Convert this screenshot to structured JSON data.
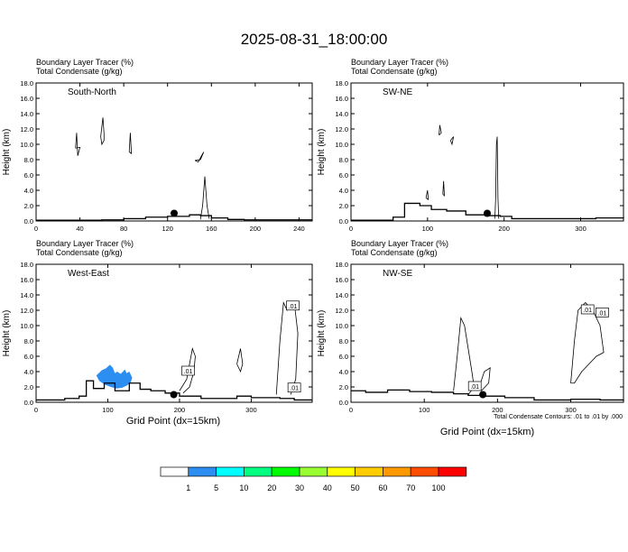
{
  "title": "2025-08-31_18:00:00",
  "chart_data": [
    {
      "type": "contour",
      "label_top": "Boundary Layer Tracer   (%)",
      "label_bottom": "Total Condensate   (g/kg)",
      "panel_label": "South-North",
      "ylabel": "Height (km)",
      "xlim": [
        0,
        252
      ],
      "ylim": [
        0,
        18
      ],
      "x_ticks": [
        0,
        40,
        80,
        120,
        160,
        200,
        240
      ],
      "y_ticks": [
        "0.0",
        "2.0",
        "4.0",
        "6.0",
        "8.0",
        "10.0",
        "12.0",
        "14.0",
        "16.0",
        "18.0"
      ],
      "marker": {
        "x": 126,
        "y": 1.0
      },
      "terrain": [
        [
          0,
          0.1
        ],
        [
          30,
          0.1
        ],
        [
          60,
          0.15
        ],
        [
          80,
          0.3
        ],
        [
          100,
          0.5
        ],
        [
          120,
          0.6
        ],
        [
          140,
          0.8
        ],
        [
          150,
          0.7
        ],
        [
          160,
          0.4
        ],
        [
          175,
          0.2
        ],
        [
          190,
          0.15
        ],
        [
          252,
          0.15
        ]
      ],
      "contours": [
        [
          [
            36,
            9.5
          ],
          [
            37,
            11.5
          ],
          [
            38,
            8.5
          ],
          [
            40,
            9.6
          ],
          [
            36,
            9.5
          ]
        ],
        [
          [
            60,
            12.3
          ],
          [
            61,
            13.5
          ],
          [
            62,
            11.4
          ],
          [
            62,
            10.5
          ],
          [
            60,
            10.0
          ],
          [
            59,
            11.0
          ],
          [
            60,
            12.3
          ]
        ],
        [
          [
            85,
            9.0
          ],
          [
            86,
            11.5
          ],
          [
            87,
            8.8
          ],
          [
            85,
            9.0
          ]
        ],
        [
          [
            145,
            7.9
          ],
          [
            150,
            8.0
          ],
          [
            153,
            9.0
          ],
          [
            151,
            8.5
          ],
          [
            148,
            7.7
          ],
          [
            145,
            7.9
          ]
        ],
        [
          [
            150,
            0.2
          ],
          [
            152,
            2.0
          ],
          [
            154,
            5.8
          ],
          [
            156,
            2.0
          ],
          [
            158,
            0.3
          ]
        ]
      ]
    },
    {
      "type": "contour",
      "label_top": "Boundary Layer Tracer   (%)",
      "label_bottom": "Total Condensate   (g/kg)",
      "panel_label": "SW-NE",
      "ylabel": "Height (km)",
      "xlim": [
        0,
        356
      ],
      "ylim": [
        0,
        18
      ],
      "x_ticks": [
        0,
        100,
        200,
        300
      ],
      "y_ticks": [
        "0.0",
        "2.0",
        "4.0",
        "6.0",
        "8.0",
        "10.0",
        "12.0",
        "14.0",
        "16.0",
        "18.0"
      ],
      "marker": {
        "x": 178,
        "y": 1.0
      },
      "terrain": [
        [
          0,
          0.1
        ],
        [
          40,
          0.1
        ],
        [
          55,
          0.5
        ],
        [
          70,
          2.3
        ],
        [
          90,
          2.0
        ],
        [
          105,
          1.5
        ],
        [
          125,
          1.3
        ],
        [
          150,
          0.8
        ],
        [
          175,
          0.7
        ],
        [
          195,
          0.6
        ],
        [
          210,
          0.3
        ],
        [
          260,
          0.3
        ],
        [
          300,
          0.3
        ],
        [
          320,
          0.4
        ],
        [
          356,
          0.5
        ]
      ],
      "contours": [
        [
          [
            115,
            11.2
          ],
          [
            116,
            12.5
          ],
          [
            118,
            11.5
          ],
          [
            115,
            11.2
          ]
        ],
        [
          [
            130,
            10.5
          ],
          [
            134,
            11.0
          ],
          [
            132,
            10.0
          ],
          [
            130,
            10.5
          ]
        ],
        [
          [
            188,
            0.3
          ],
          [
            189,
            3.0
          ],
          [
            190,
            10.0
          ],
          [
            191,
            11.0
          ],
          [
            192,
            3.0
          ],
          [
            193,
            0.3
          ]
        ],
        [
          [
            98,
            3.0
          ],
          [
            100,
            4.0
          ],
          [
            101,
            2.8
          ],
          [
            98,
            3.0
          ]
        ],
        [
          [
            120,
            3.5
          ],
          [
            121,
            5.2
          ],
          [
            122,
            3.3
          ],
          [
            120,
            3.5
          ]
        ]
      ]
    },
    {
      "type": "contour",
      "label_top": "Boundary Layer Tracer   (%)",
      "label_bottom": "Total Condensate   (g/kg)",
      "panel_label": "West-East",
      "ylabel": "Height (km)",
      "xlim": [
        0,
        385
      ],
      "ylim": [
        0,
        18
      ],
      "x_ticks": [
        0,
        100,
        200,
        300
      ],
      "y_ticks": [
        "0.0",
        "2.0",
        "4.0",
        "6.0",
        "8.0",
        "10.0",
        "12.0",
        "14.0",
        "16.0",
        "18.0"
      ],
      "marker": {
        "x": 192,
        "y": 1.0
      },
      "terrain": [
        [
          0,
          0.3
        ],
        [
          30,
          0.3
        ],
        [
          40,
          0.5
        ],
        [
          60,
          0.8
        ],
        [
          70,
          2.8
        ],
        [
          80,
          1.8
        ],
        [
          95,
          2.5
        ],
        [
          110,
          1.5
        ],
        [
          130,
          2.5
        ],
        [
          145,
          1.7
        ],
        [
          160,
          1.5
        ],
        [
          180,
          1.2
        ],
        [
          200,
          0.8
        ],
        [
          230,
          0.5
        ],
        [
          260,
          0.5
        ],
        [
          280,
          0.8
        ],
        [
          300,
          0.6
        ],
        [
          340,
          0.5
        ],
        [
          360,
          0.3
        ],
        [
          385,
          0.3
        ]
      ],
      "contours": [
        [
          [
            200,
            1.5
          ],
          [
            210,
            3.0
          ],
          [
            215,
            5.5
          ],
          [
            218,
            7.0
          ],
          [
            222,
            6.0
          ],
          [
            220,
            4.0
          ],
          [
            214,
            2.0
          ],
          [
            205,
            1.2
          ]
        ],
        [
          [
            280,
            5.0
          ],
          [
            285,
            7.0
          ],
          [
            288,
            5.0
          ],
          [
            285,
            4.0
          ],
          [
            280,
            5.0
          ]
        ],
        [
          [
            335,
            1.0
          ],
          [
            340,
            8.0
          ],
          [
            345,
            13.0
          ],
          [
            350,
            12.0
          ],
          [
            360,
            13.0
          ],
          [
            365,
            9.0
          ],
          [
            362,
            3.0
          ],
          [
            355,
            1.0
          ]
        ]
      ],
      "labels": [
        {
          "x": 212,
          "y": 4.0,
          "text": ".01"
        },
        {
          "x": 358,
          "y": 12.5,
          "text": ".01"
        },
        {
          "x": 360,
          "y": 1.8,
          "text": ".01"
        }
      ],
      "shaded": [
        {
          "x": [
            84,
            92,
            97,
            103,
            107,
            110,
            113,
            118,
            124,
            126,
            130,
            132,
            134,
            132,
            127,
            120,
            112,
            104,
            96,
            88,
            84
          ],
          "y": [
            3.5,
            4.2,
            4.4,
            4.9,
            4.5,
            3.8,
            4.0,
            3.7,
            4.3,
            3.8,
            4.0,
            3.6,
            3.2,
            2.6,
            2.2,
            1.9,
            1.8,
            2.0,
            2.3,
            2.8,
            3.5
          ],
          "color": "#2c8ef0"
        }
      ]
    },
    {
      "type": "contour",
      "label_top": "Boundary Layer Tracer   (%)",
      "label_bottom": "Total Condensate   (g/kg)",
      "panel_label": "NW-SE",
      "ylabel": "Height (km)",
      "xlim": [
        0,
        372
      ],
      "ylim": [
        0,
        18
      ],
      "x_ticks": [
        0,
        100,
        200,
        300
      ],
      "y_ticks": [
        "0.0",
        "2.0",
        "4.0",
        "6.0",
        "8.0",
        "10.0",
        "12.0",
        "14.0",
        "16.0",
        "18.0"
      ],
      "marker": {
        "x": 180,
        "y": 1.0
      },
      "terrain": [
        [
          0,
          1.5
        ],
        [
          20,
          1.3
        ],
        [
          50,
          1.6
        ],
        [
          80,
          1.4
        ],
        [
          110,
          1.3
        ],
        [
          140,
          1.1
        ],
        [
          160,
          0.9
        ],
        [
          180,
          0.8
        ],
        [
          210,
          0.6
        ],
        [
          250,
          0.3
        ],
        [
          300,
          0.4
        ],
        [
          340,
          0.3
        ],
        [
          372,
          0.2
        ]
      ],
      "contours": [
        [
          [
            140,
            1.5
          ],
          [
            145,
            6.0
          ],
          [
            150,
            11.0
          ],
          [
            155,
            10.0
          ],
          [
            160,
            7.0
          ],
          [
            165,
            4.0
          ],
          [
            168,
            2.0
          ],
          [
            160,
            1.0
          ]
        ],
        [
          [
            175,
            2.0
          ],
          [
            182,
            4.0
          ],
          [
            190,
            4.5
          ],
          [
            188,
            2.5
          ],
          [
            178,
            1.5
          ],
          [
            175,
            2.0
          ]
        ],
        [
          [
            300,
            2.5
          ],
          [
            305,
            8.0
          ],
          [
            310,
            12.0
          ],
          [
            320,
            13.0
          ],
          [
            330,
            12.0
          ],
          [
            340,
            10.0
          ],
          [
            345,
            6.5
          ],
          [
            335,
            6.0
          ],
          [
            325,
            5.0
          ],
          [
            315,
            4.0
          ],
          [
            305,
            2.5
          ],
          [
            300,
            2.5
          ]
        ]
      ],
      "labels": [
        {
          "x": 323,
          "y": 12.0,
          "text": ".01"
        },
        {
          "x": 343,
          "y": 11.6,
          "text": ".01"
        },
        {
          "x": 169,
          "y": 2.0,
          "text": ".01"
        }
      ]
    }
  ],
  "xlabel": "Grid Point (dx=15km)",
  "contour_note": "Total Condensate Contours: .01 to .01 by .000",
  "colorbar": {
    "colors": [
      "#ffffff",
      "#2c8ef0",
      "#00ffff",
      "#00ff80",
      "#00ff00",
      "#99ff33",
      "#ffff00",
      "#ffcc00",
      "#ff9900",
      "#ff4d00",
      "#ff0000"
    ],
    "labels": [
      "1",
      "5",
      "10",
      "20",
      "30",
      "40",
      "50",
      "60",
      "70",
      "100"
    ]
  }
}
